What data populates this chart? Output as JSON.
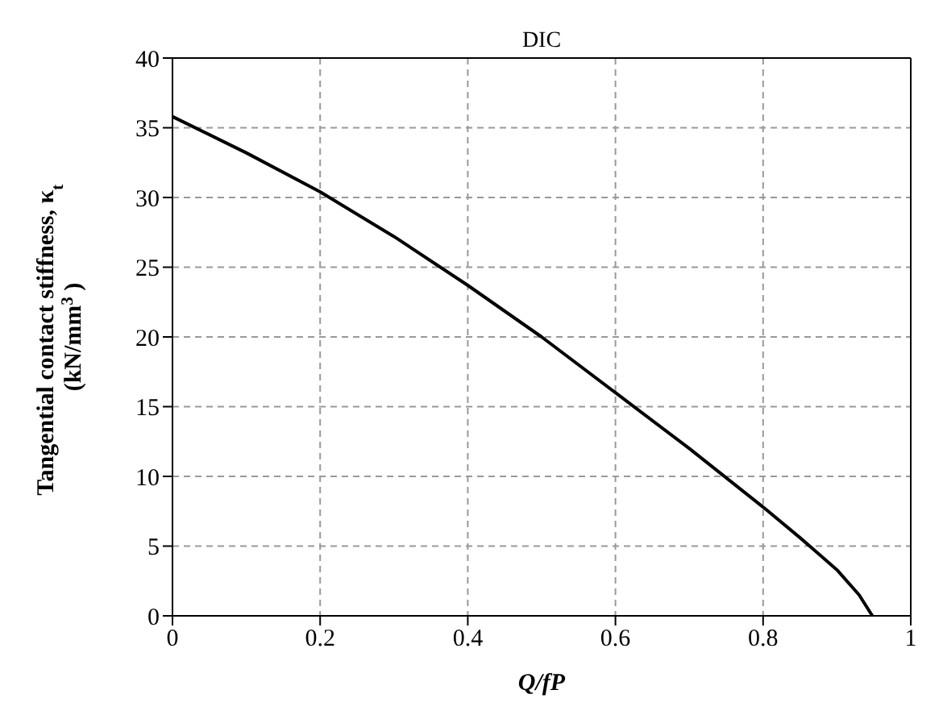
{
  "chart_data": {
    "type": "line",
    "title": "DIC",
    "xlabel": "Q/fP",
    "ylabel": "Tangential contact stiffness, κ$_{t}$\n(kN/mm$^{3}$)",
    "series": [
      {
        "color": "#000000",
        "x": [
          0,
          0.1,
          0.2,
          0.3,
          0.4,
          0.5,
          0.6,
          0.7,
          0.8,
          0.85,
          0.9,
          0.93,
          0.948
        ],
        "values": [
          35.8,
          33.2,
          30.4,
          27.2,
          23.7,
          20.0,
          16.0,
          12.0,
          7.8,
          5.6,
          3.3,
          1.5,
          0
        ]
      }
    ],
    "xlim": [
      0,
      1
    ],
    "xticks": [
      0,
      0.2,
      0.4,
      0.6,
      0.8,
      1
    ],
    "ylim": [
      0,
      40
    ],
    "yticks": [
      0,
      5,
      10,
      15,
      20,
      25,
      30,
      35,
      40
    ],
    "grid": true,
    "marker": "none",
    "line_style": "solid"
  }
}
